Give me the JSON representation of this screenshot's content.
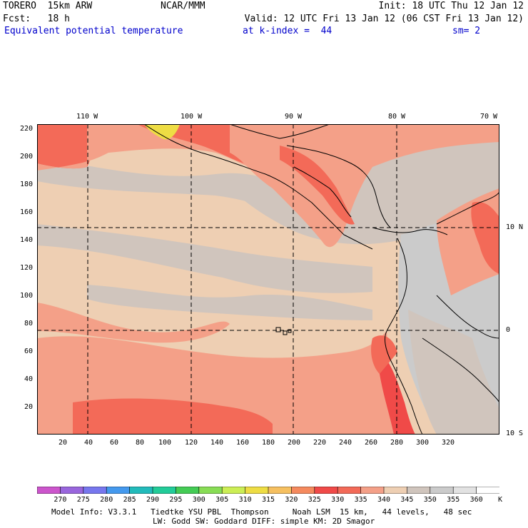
{
  "header": {
    "line1_left": "TORERO  15km ARW",
    "line1_center": "NCAR/MMM",
    "line1_right": "Init: 18 UTC Thu 12 Jan 12",
    "line2_left": "Fcst:   18 h",
    "line2_right": "Valid: 12 UTC Fri 13 Jan 12 (06 CST Fri 13 Jan 12)",
    "field_name": "Equivalent potential temperature",
    "level": "at k-index =  44",
    "smoothing": "sm= 2"
  },
  "map": {
    "lon_labels": [
      "110 W",
      "100 W",
      "90 W",
      "80 W",
      "70 W"
    ],
    "lat_labels": [
      "10 N",
      "0",
      "10 S"
    ],
    "x_ticks": [
      "20",
      "40",
      "60",
      "80",
      "100",
      "120",
      "140",
      "160",
      "180",
      "200",
      "220",
      "240",
      "260",
      "280",
      "300",
      "320"
    ],
    "y_ticks": [
      "220",
      "200",
      "180",
      "160",
      "140",
      "120",
      "100",
      "80",
      "60",
      "40",
      "20"
    ],
    "land_color": "#000000",
    "grid_style": "dashed"
  },
  "colorbar": {
    "labels": [
      "270",
      "275",
      "280",
      "285",
      "290",
      "295",
      "300",
      "305",
      "310",
      "315",
      "320",
      "325",
      "330",
      "335",
      "340",
      "345",
      "350",
      "355",
      "360"
    ],
    "unit": "K",
    "colors": [
      "#cc55cc",
      "#9966dd",
      "#7777ee",
      "#4499ee",
      "#22bbbb",
      "#22cc99",
      "#44cc55",
      "#88dd55",
      "#ccee55",
      "#eedd44",
      "#f6c060",
      "#f58a5e",
      "#f04a48",
      "#f36a58",
      "#f4a088",
      "#eecfb3",
      "#d0c5bd",
      "#cbcbcb",
      "#e2e2e2",
      "#ffffff"
    ]
  },
  "footer": {
    "line1": "Model Info: V3.3.1   Tiedtke YSU PBL  Thompson     Noah LSM  15 km,   44 levels,   48 sec",
    "line2": "LW: Godd SW: Goddard DIFF: simple KM: 2D Smagor"
  }
}
